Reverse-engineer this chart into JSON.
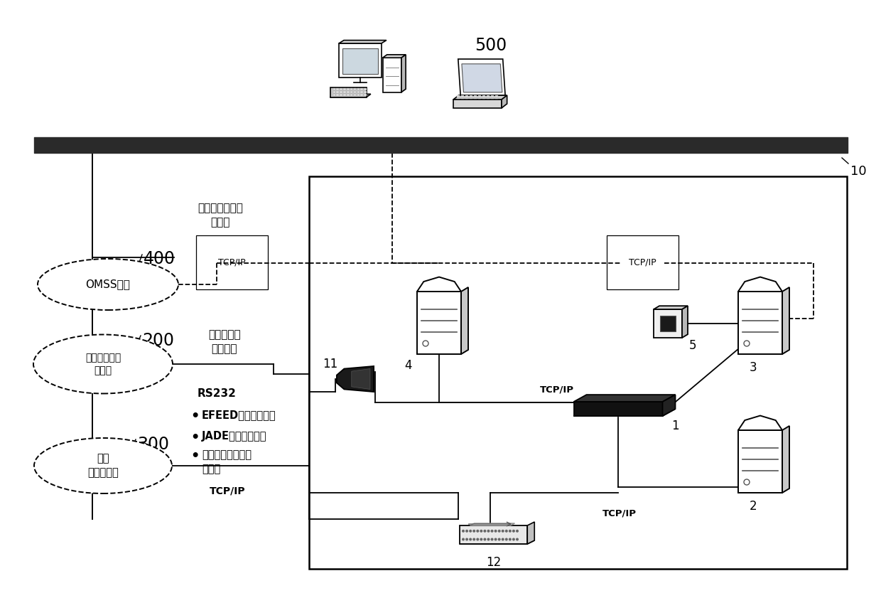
{
  "bg_color": "#ffffff",
  "fig_width": 12.4,
  "fig_height": 8.41,
  "label_500": "500",
  "label_10": "10",
  "label_400": "400",
  "label_200": "200",
  "label_300": "300",
  "omss_label": "OMSS系统",
  "tower_label": "塔台电子进程\n单系统",
  "atc_label": "空管\n自动化系统",
  "text_guanzhi": "管制值班运行记\n录信息",
  "text_dianzi": "电子进程单\n状态信息",
  "text_rs232": "RS232",
  "text_tcpip_boxed": "TCP/IP",
  "text_tcpip_plain1": "TCP/IP",
  "text_tcpip_plain2": "TCP/IP",
  "text_tcpip_plain3": "TCP/IP",
  "bullet1": "EFEED飞行数据信息",
  "bullet2": "JADE扇区合并信息",
  "bullet3": "自动化系统设备状\n态信息",
  "node1": "1",
  "node2": "2",
  "node3": "3",
  "node4": "4",
  "node5": "5",
  "node11": "11",
  "node12": "12"
}
